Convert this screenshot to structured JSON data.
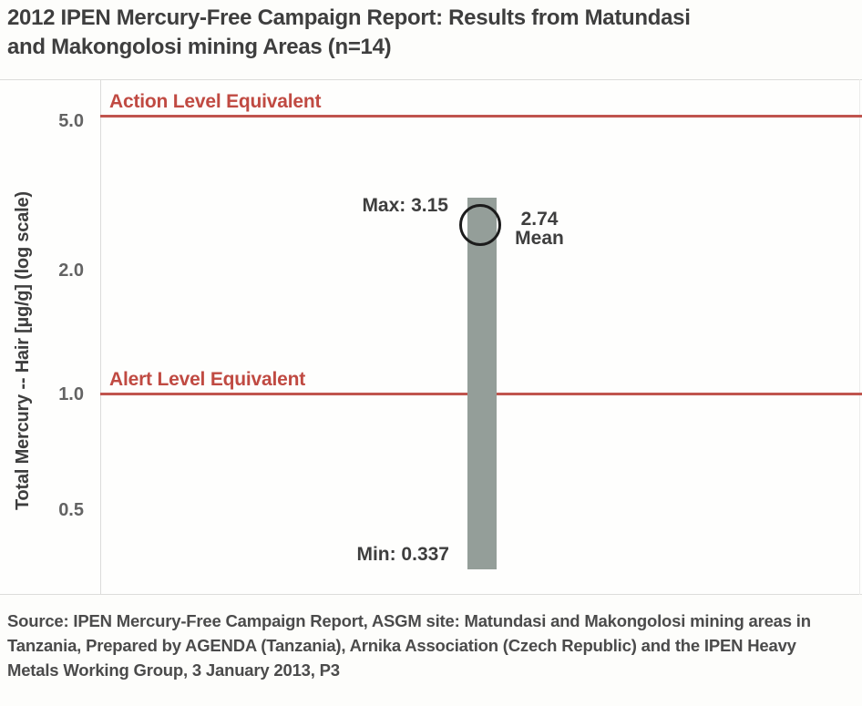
{
  "title_lines": [
    "2012 IPEN Mercury-Free Campaign Report: Results from Matundasi",
    "and Makongolosi mining Areas (n=14)"
  ],
  "source_lines": [
    "Source: IPEN Mercury-Free Campaign Report, ASGM site: Matundasi and Makongolosi mining areas in",
    "Tanzania, Prepared by AGENDA (Tanzania), Arnika Association (Czech Republic) and the IPEN Heavy",
    "Metals Working Group, 3 January 2013, P3"
  ],
  "chart_data": {
    "type": "bar",
    "title": "2012 IPEN Mercury-Free Campaign Report: Results from Matundasi and Makongolosi mining Areas (n=14)",
    "ylabel": "Total Mercury -- Hair [µg/g] (log scale)",
    "yscale": "log",
    "ytick_labels": [
      "5.0",
      "2.0",
      "1.0",
      "0.5"
    ],
    "ytick_values": [
      5.0,
      2.0,
      1.0,
      0.5
    ],
    "ylim": [
      0.3,
      5.5
    ],
    "n": 14,
    "series": [
      {
        "name": "Total mercury in hair",
        "min": 0.337,
        "max": 3.15,
        "mean": 2.74
      }
    ],
    "annotations": {
      "max_label": "Max: 3.15",
      "mean_value_label": "2.74",
      "mean_caption": "Mean",
      "min_label": "Min: 0.337"
    },
    "reference_lines": [
      {
        "label": "Action Level Equivalent",
        "value": 5.0
      },
      {
        "label": "Alert Level Equivalent",
        "value": 1.0
      }
    ],
    "legend": "none",
    "grid": false,
    "colors": {
      "bar": "#949e99",
      "reference_line": "#c0544e",
      "reference_label": "#c04a42",
      "mean_marker_outline": "#1c1c1c",
      "text": "#3e3e3e"
    }
  }
}
